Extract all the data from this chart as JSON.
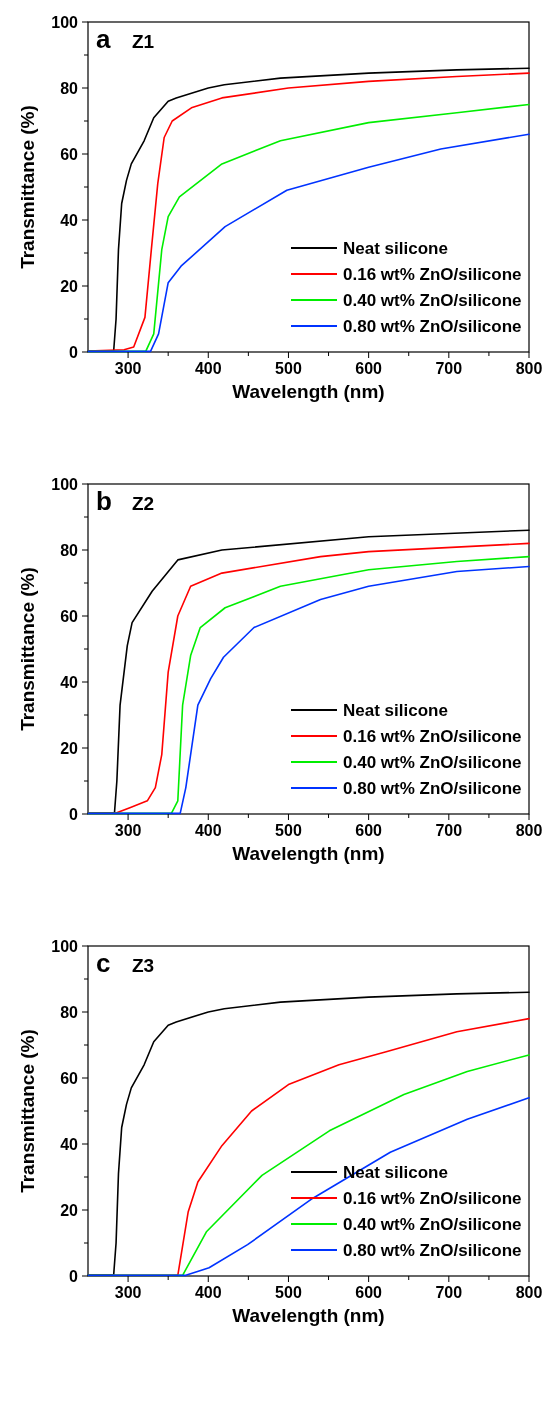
{
  "chart_data": [
    {
      "type": "line",
      "title": "Z1",
      "annotations": [
        "a"
      ],
      "xlabel": "Wavelength (nm)",
      "ylabel": "Transmittance (%)",
      "xlim": [
        250,
        800
      ],
      "ylim": [
        0,
        100
      ],
      "xticks": [
        300,
        {
          "value": 350,
          "label": null
        },
        400,
        {
          "value": 450,
          "label": null
        },
        500,
        {
          "value": 550,
          "label": null
        },
        600,
        {
          "value": 650,
          "label": null
        },
        700,
        {
          "value": 750,
          "label": null
        },
        800
      ],
      "yticks": [
        0,
        {
          "value": 10,
          "label": null
        },
        20,
        {
          "value": 30,
          "label": null
        },
        40,
        {
          "value": 50,
          "label": null
        },
        60,
        {
          "value": 70,
          "label": null
        },
        80,
        {
          "value": 90,
          "label": null
        },
        100
      ],
      "legend": "bottom right",
      "grid": false,
      "marker": "none",
      "line_style": "solid",
      "series": [
        {
          "name": "Neat silicone",
          "color": "#000000",
          "x": [
            250,
            282,
            285,
            288,
            292,
            298,
            304,
            320,
            332,
            350,
            360,
            400,
            420,
            490,
            600,
            710,
            800
          ],
          "values": [
            0.3,
            0.3,
            10,
            31,
            45,
            52,
            57,
            64,
            71,
            76,
            77,
            80,
            81,
            83,
            84.5,
            85.5,
            86
          ]
        },
        {
          "name": "0.16 wt% ZnO/silicone",
          "color": "#ff0000",
          "x": [
            250,
            295,
            307,
            321,
            329,
            337,
            345,
            355,
            379,
            417,
            500,
            600,
            710,
            800
          ],
          "values": [
            0.3,
            0.7,
            1.5,
            10.5,
            31,
            51,
            65,
            70,
            74,
            77,
            80,
            82,
            83.5,
            84.5
          ]
        },
        {
          "name": "0.40 wt% ZnO/silicone",
          "color": "#00ee00",
          "x": [
            250,
            322,
            332,
            342,
            350,
            364,
            417,
            490,
            600,
            710,
            800
          ],
          "values": [
            0.2,
            0.2,
            5.5,
            31,
            41,
            47,
            57,
            64,
            69.5,
            72.5,
            75
          ]
        },
        {
          "name": "0.80 wt% ZnO/silicone",
          "color": "#0033ff",
          "x": [
            250,
            328,
            338,
            350,
            366,
            421,
            498,
            600,
            690,
            800
          ],
          "values": [
            0.2,
            0.2,
            5.5,
            21,
            26,
            38,
            49,
            56,
            61.5,
            66
          ]
        }
      ]
    },
    {
      "type": "line",
      "title": "Z2",
      "annotations": [
        "b"
      ],
      "xlabel": "Wavelength (nm)",
      "ylabel": "Transmittance (%)",
      "xlim": [
        250,
        800
      ],
      "ylim": [
        0,
        100
      ],
      "xticks": [
        300,
        {
          "value": 350,
          "label": null
        },
        400,
        {
          "value": 450,
          "label": null
        },
        500,
        {
          "value": 550,
          "label": null
        },
        600,
        {
          "value": 650,
          "label": null
        },
        700,
        {
          "value": 750,
          "label": null
        },
        800
      ],
      "yticks": [
        0,
        {
          "value": 10,
          "label": null
        },
        20,
        {
          "value": 30,
          "label": null
        },
        40,
        {
          "value": 50,
          "label": null
        },
        60,
        {
          "value": 70,
          "label": null
        },
        80,
        {
          "value": 90,
          "label": null
        },
        100
      ],
      "legend": "bottom right",
      "grid": false,
      "marker": "none",
      "line_style": "solid",
      "series": [
        {
          "name": "Neat silicone",
          "color": "#000000",
          "x": [
            250,
            283,
            286,
            290,
            299,
            305,
            330,
            362,
            417,
            600,
            800
          ],
          "values": [
            0.3,
            0.3,
            10,
            33,
            51,
            58,
            67.5,
            77,
            80,
            84,
            86
          ]
        },
        {
          "name": "0.16 wt% ZnO/silicone",
          "color": "#ff0000",
          "x": [
            250,
            285,
            303,
            324,
            334,
            342,
            350,
            362,
            378,
            417,
            540,
            600,
            800
          ],
          "values": [
            0.3,
            0.3,
            2,
            4,
            8,
            18,
            43,
            60,
            69,
            73,
            78,
            79.5,
            82
          ]
        },
        {
          "name": "0.40 wt% ZnO/silicone",
          "color": "#00ee00",
          "x": [
            250,
            354,
            362,
            368,
            378,
            390,
            421,
            490,
            600,
            710,
            800
          ],
          "values": [
            0.2,
            0.2,
            4,
            33,
            48,
            56.5,
            62.5,
            69,
            74,
            76.5,
            78
          ]
        },
        {
          "name": "0.80 wt% ZnO/silicone",
          "color": "#0033ff",
          "x": [
            250,
            365,
            372,
            387,
            403,
            419,
            457,
            540,
            600,
            710,
            800
          ],
          "values": [
            0.2,
            0.2,
            8,
            33,
            41,
            47.5,
            56.5,
            65,
            69,
            73.5,
            75
          ]
        }
      ]
    },
    {
      "type": "line",
      "title": "Z3",
      "annotations": [
        "c"
      ],
      "xlabel": "Wavelength (nm)",
      "ylabel": "Transmittance (%)",
      "xlim": [
        250,
        800
      ],
      "ylim": [
        0,
        100
      ],
      "xticks": [
        300,
        {
          "value": 350,
          "label": null
        },
        400,
        {
          "value": 450,
          "label": null
        },
        500,
        {
          "value": 550,
          "label": null
        },
        600,
        {
          "value": 650,
          "label": null
        },
        700,
        {
          "value": 750,
          "label": null
        },
        800
      ],
      "yticks": [
        0,
        {
          "value": 10,
          "label": null
        },
        20,
        {
          "value": 30,
          "label": null
        },
        40,
        {
          "value": 50,
          "label": null
        },
        60,
        {
          "value": 70,
          "label": null
        },
        80,
        {
          "value": 90,
          "label": null
        },
        100
      ],
      "legend": "bottom right",
      "grid": false,
      "marker": "none",
      "line_style": "solid",
      "series": [
        {
          "name": "Neat silicone",
          "color": "#000000",
          "x": [
            250,
            282,
            285,
            288,
            292,
            298,
            304,
            320,
            332,
            350,
            360,
            400,
            420,
            490,
            600,
            710,
            800
          ],
          "values": [
            0.3,
            0.3,
            10,
            31,
            45,
            52,
            57,
            64,
            71,
            76,
            77,
            80,
            81,
            83,
            84.5,
            85.5,
            86
          ]
        },
        {
          "name": "0.16 wt% ZnO/silicone",
          "color": "#ff0000",
          "x": [
            250,
            362,
            375,
            387,
            417,
            454,
            500,
            563,
            623,
            710,
            800
          ],
          "values": [
            0.2,
            0.2,
            19.5,
            28.5,
            39.5,
            50,
            58,
            64,
            68,
            74,
            78
          ]
        },
        {
          "name": "0.40 wt% ZnO/silicone",
          "color": "#00ee00",
          "x": [
            250,
            368,
            398,
            467,
            551,
            644,
            723,
            800
          ],
          "values": [
            0.2,
            0.2,
            13.5,
            30.5,
            44,
            55,
            62,
            67
          ]
        },
        {
          "name": "0.80 wt% ZnO/silicone",
          "color": "#0033ff",
          "x": [
            250,
            372,
            401,
            449,
            530,
            627,
            723,
            800
          ],
          "values": [
            0.2,
            0.2,
            2.5,
            9.5,
            23.5,
            37.5,
            47.5,
            54
          ]
        }
      ]
    }
  ]
}
